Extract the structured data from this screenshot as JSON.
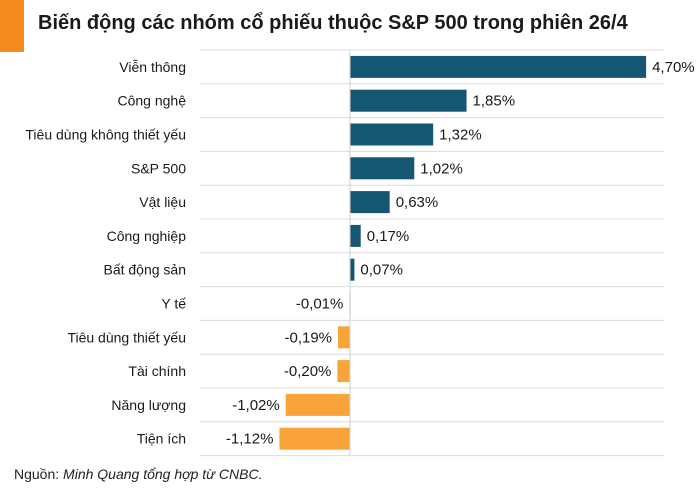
{
  "title": "Biến động các nhóm cổ phiếu thuộc S&P 500 trong phiên 26/4",
  "source_prefix": "Nguồn: ",
  "source_text": "Minh Quang tổng hợp từ CNBC.",
  "colors": {
    "accent": "#f28a1d",
    "positive": "#155673",
    "negative": "#f8a43a"
  },
  "chart_data": {
    "type": "bar",
    "orientation": "horizontal",
    "categories": [
      "Viễn thông",
      "Công nghệ",
      "Tiêu dùng không thiết yếu",
      "S&P 500",
      "Vật liệu",
      "Công nghiệp",
      "Bất động sản",
      "Y tế",
      "Tiêu dùng thiết yếu",
      "Tài chính",
      "Năng lượng",
      "Tiện ích"
    ],
    "values": [
      4.7,
      1.85,
      1.32,
      1.02,
      0.63,
      0.17,
      0.07,
      -0.01,
      -0.19,
      -0.2,
      -1.02,
      -1.12
    ],
    "data_labels": [
      "4,70%",
      "1,85%",
      "1,32%",
      "1,02%",
      "0,63%",
      "0,17%",
      "0,07%",
      "-0,01%",
      "-0,19%",
      "-0,20%",
      "-1,02%",
      "-1,12%"
    ],
    "unit": "%",
    "title": "Biến động các nhóm cổ phiếu thuộc S&P 500 trong phiên 26/4",
    "xlim": [
      -1.5,
      5.0
    ],
    "grid": "horizontal",
    "legend": "none"
  }
}
